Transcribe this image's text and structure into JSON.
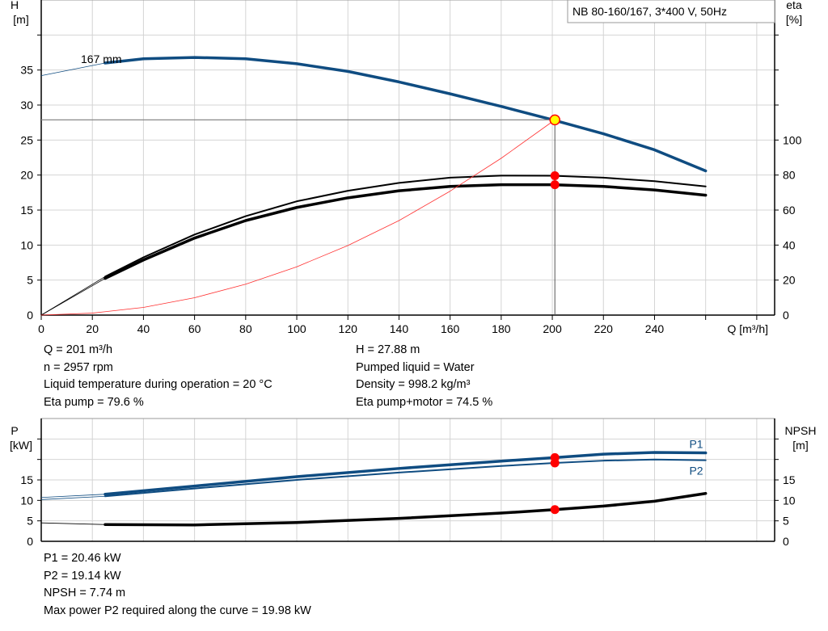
{
  "chart_data": [
    {
      "type": "line",
      "title": "NB 80-160/167, 3*400 V, 50Hz",
      "xlabel": "Q [m³/h]",
      "ylabel": "H\n[m]",
      "ylabel_lines": [
        "H",
        "[m]"
      ],
      "y2label_lines": [
        "eta",
        "[%]"
      ],
      "xlim": [
        0,
        287
      ],
      "ylim": [
        0,
        45
      ],
      "y2lim": [
        0,
        180
      ],
      "xticks": [
        0,
        20,
        40,
        60,
        80,
        100,
        120,
        140,
        160,
        180,
        200,
        220,
        240
      ],
      "yticks": [
        0,
        5,
        10,
        15,
        20,
        25,
        30,
        35
      ],
      "y2ticks": [
        0,
        20,
        40,
        60,
        80,
        100
      ],
      "grid": true,
      "curve_label": "167 mm",
      "series": [
        {
          "key": "H",
          "axis": "left",
          "color": "#0f4c81",
          "width": 3.5,
          "x": [
            25,
            40,
            60,
            80,
            100,
            120,
            140,
            160,
            180,
            200,
            220,
            240,
            260
          ],
          "y": [
            36.0,
            36.6,
            36.8,
            36.6,
            35.9,
            34.8,
            33.3,
            31.6,
            29.8,
            27.9,
            25.9,
            23.6,
            20.6
          ],
          "ext_x": [
            0,
            25
          ],
          "ext_y": [
            34.2,
            36.0
          ]
        },
        {
          "key": "eta_pump",
          "axis": "right",
          "color": "#000000",
          "width": 2,
          "x": [
            25,
            40,
            60,
            80,
            100,
            120,
            140,
            160,
            180,
            200,
            220,
            240,
            260
          ],
          "y": [
            22,
            33,
            46,
            56.5,
            65,
            71,
            75.5,
            78.5,
            79.7,
            79.6,
            78.5,
            76.5,
            73.5
          ],
          "ext_x": [
            0,
            25
          ],
          "ext_y": [
            0,
            22
          ]
        },
        {
          "key": "eta_pump_motor",
          "axis": "right",
          "color": "#000000",
          "width": 3.5,
          "x": [
            25,
            40,
            60,
            80,
            100,
            120,
            140,
            160,
            180,
            200,
            220,
            240,
            260
          ],
          "y": [
            21,
            31.5,
            44,
            54,
            61.5,
            67,
            71,
            73.5,
            74.5,
            74.5,
            73.5,
            71.5,
            68.5
          ],
          "ext_x": [
            0,
            25
          ],
          "ext_y": [
            0,
            21
          ]
        },
        {
          "key": "system",
          "axis": "left",
          "color": "#ff3030",
          "width": 0.8,
          "x": [
            0,
            20,
            40,
            60,
            80,
            100,
            120,
            140,
            160,
            180,
            201
          ],
          "y": [
            0,
            0.28,
            1.1,
            2.48,
            4.41,
            6.9,
            9.94,
            13.5,
            17.7,
            22.4,
            27.88
          ]
        }
      ],
      "duty_point": {
        "Q": 201,
        "H": 27.88,
        "eta_pump": 79.6,
        "eta_pump_motor": 74.5,
        "color": "#ffff00"
      }
    },
    {
      "type": "line",
      "ylabel_lines": [
        "P",
        "[kW]"
      ],
      "y2label_lines": [
        "NPSH",
        "[m]"
      ],
      "xlim": [
        0,
        287
      ],
      "ylim": [
        0,
        30
      ],
      "yticks": [
        0,
        5,
        10,
        15
      ],
      "y2ticks": [
        0,
        5,
        10,
        15
      ],
      "grid": true,
      "series": [
        {
          "name": "P1",
          "axis": "left",
          "color": "#0f4c81",
          "width": 3.5,
          "x": [
            25,
            60,
            100,
            140,
            180,
            201,
            220,
            240,
            260
          ],
          "y": [
            11.5,
            13.5,
            15.8,
            17.8,
            19.6,
            20.46,
            21.3,
            21.7,
            21.6
          ],
          "ext_x": [
            0,
            25
          ],
          "ext_y": [
            10.7,
            11.5
          ]
        },
        {
          "name": "P2",
          "axis": "left",
          "color": "#0f4c81",
          "width": 2,
          "x": [
            25,
            60,
            100,
            140,
            180,
            201,
            220,
            240,
            260
          ],
          "y": [
            11.0,
            12.9,
            15.0,
            16.8,
            18.4,
            19.14,
            19.7,
            19.98,
            19.8
          ],
          "ext_x": [
            0,
            25
          ],
          "ext_y": [
            10.2,
            11.0
          ]
        },
        {
          "key": "NPSH",
          "axis": "right",
          "color": "#000000",
          "width": 3.5,
          "x": [
            25,
            60,
            100,
            140,
            180,
            201,
            220,
            240,
            260
          ],
          "y": [
            4.1,
            4.0,
            4.6,
            5.6,
            6.9,
            7.74,
            8.6,
            9.8,
            11.7
          ],
          "ext_x": [
            0,
            25
          ],
          "ext_y": [
            4.5,
            4.1
          ]
        }
      ],
      "duty_point": {
        "Q": 201,
        "P1": 20.46,
        "P2": 19.14,
        "NPSH": 7.74
      }
    }
  ],
  "info_top_left": [
    "Q = 201 m³/h",
    "n = 2957 rpm",
    "Liquid temperature during operation = 20 °C",
    "Eta pump = 79.6 %"
  ],
  "info_top_right": [
    "H = 27.88 m",
    "Pumped liquid = Water",
    "Density = 998.2 kg/m³",
    "Eta pump+motor = 74.5 %"
  ],
  "info_bottom": [
    "P1 = 20.46 kW",
    "P2 = 19.14 kW",
    "NPSH = 7.74 m",
    "Max power P2 required along the curve = 19.98 kW"
  ],
  "colors": {
    "grid": "#d4d4d4",
    "marker": "#ff0000"
  }
}
